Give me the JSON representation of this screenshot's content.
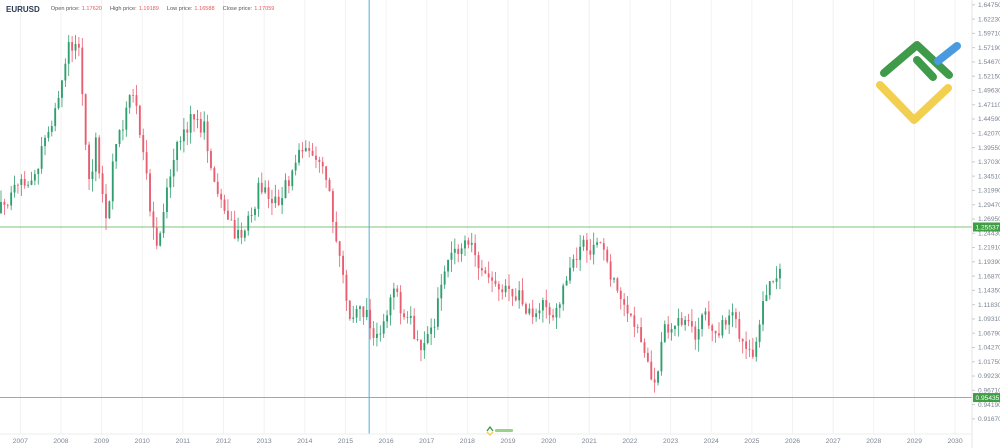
{
  "header": {
    "symbol": "EURUSD",
    "open_label": "Open price:",
    "open_value": "1.17620",
    "high_label": "High price:",
    "high_value": "1.19189",
    "low_label": "Low price:",
    "low_value": "1.16588",
    "close_label": "Close price:",
    "close_value": "1.17059"
  },
  "colors": {
    "up": "#2e9e6e",
    "down": "#e85d6f",
    "hline": "#7cc47a",
    "crosshair": "#4fb0d8",
    "label_bg": "#3f9f45",
    "logo_green": "#3f9a49",
    "logo_blue": "#4a9ae0",
    "logo_yellow": "#f3cf4f"
  },
  "icons": [
    "company-logo-icon",
    "watermark-logo-icon"
  ],
  "chart_data": {
    "type": "candlestick",
    "x_domain": [
      "2006-07",
      "2030-06"
    ],
    "ylim": [
      0.89,
      1.656
    ],
    "y_ticks": [
      "1.64750",
      "1.62230",
      "1.59710",
      "1.57190",
      "1.54670",
      "1.52150",
      "1.49630",
      "1.47110",
      "1.44590",
      "1.42070",
      "1.39550",
      "1.37030",
      "1.34510",
      "1.31990",
      "1.29470",
      "1.26950",
      "1.24430",
      "1.21910",
      "1.19390",
      "1.16870",
      "1.14350",
      "1.11830",
      "1.09310",
      "1.06790",
      "1.04270",
      "1.01750",
      "0.99230",
      "0.96710",
      "0.94190",
      "0.91670"
    ],
    "x_ticks": [
      "2007",
      "2008",
      "2009",
      "2010",
      "2011",
      "2012",
      "2013",
      "2014",
      "2015",
      "2016",
      "2017",
      "2018",
      "2019",
      "2020",
      "2021",
      "2022",
      "2023",
      "2024",
      "2025",
      "2026",
      "2027",
      "2028",
      "2029",
      "2030"
    ],
    "horizontal_lines": [
      {
        "value": 1.25537,
        "label": "1.25537"
      },
      {
        "value": 0.95435,
        "label": "0.95435"
      }
    ],
    "crosshair_x": "2015-08",
    "series_key_points": [
      {
        "x": "2006-07",
        "y": 1.28
      },
      {
        "x": "2006-12",
        "y": 1.32
      },
      {
        "x": "2007-06",
        "y": 1.35
      },
      {
        "x": "2007-12",
        "y": 1.46
      },
      {
        "x": "2008-04",
        "y": 1.57
      },
      {
        "x": "2008-07",
        "y": 1.58
      },
      {
        "x": "2008-10",
        "y": 1.33
      },
      {
        "x": "2008-12",
        "y": 1.4
      },
      {
        "x": "2009-03",
        "y": 1.27
      },
      {
        "x": "2009-06",
        "y": 1.4
      },
      {
        "x": "2009-11",
        "y": 1.5
      },
      {
        "x": "2010-01",
        "y": 1.42
      },
      {
        "x": "2010-06",
        "y": 1.21
      },
      {
        "x": "2010-11",
        "y": 1.38
      },
      {
        "x": "2011-04",
        "y": 1.45
      },
      {
        "x": "2011-08",
        "y": 1.43
      },
      {
        "x": "2011-12",
        "y": 1.3
      },
      {
        "x": "2012-07",
        "y": 1.23
      },
      {
        "x": "2012-12",
        "y": 1.32
      },
      {
        "x": "2013-06",
        "y": 1.3
      },
      {
        "x": "2013-12",
        "y": 1.38
      },
      {
        "x": "2014-05",
        "y": 1.38
      },
      {
        "x": "2014-08",
        "y": 1.34
      },
      {
        "x": "2014-12",
        "y": 1.21
      },
      {
        "x": "2015-03",
        "y": 1.08
      },
      {
        "x": "2015-06",
        "y": 1.12
      },
      {
        "x": "2015-11",
        "y": 1.06
      },
      {
        "x": "2016-04",
        "y": 1.14
      },
      {
        "x": "2016-12",
        "y": 1.05
      },
      {
        "x": "2017-04",
        "y": 1.09
      },
      {
        "x": "2017-08",
        "y": 1.19
      },
      {
        "x": "2018-01",
        "y": 1.24
      },
      {
        "x": "2018-03",
        "y": 1.23
      },
      {
        "x": "2018-06",
        "y": 1.17
      },
      {
        "x": "2018-12",
        "y": 1.14
      },
      {
        "x": "2019-06",
        "y": 1.13
      },
      {
        "x": "2019-09",
        "y": 1.09
      },
      {
        "x": "2019-12",
        "y": 1.12
      },
      {
        "x": "2020-03",
        "y": 1.1
      },
      {
        "x": "2020-08",
        "y": 1.18
      },
      {
        "x": "2020-12",
        "y": 1.22
      },
      {
        "x": "2021-05",
        "y": 1.22
      },
      {
        "x": "2021-09",
        "y": 1.16
      },
      {
        "x": "2021-12",
        "y": 1.13
      },
      {
        "x": "2022-05",
        "y": 1.06
      },
      {
        "x": "2022-09",
        "y": 0.98
      },
      {
        "x": "2022-12",
        "y": 1.07
      },
      {
        "x": "2023-06",
        "y": 1.09
      },
      {
        "x": "2023-09",
        "y": 1.06
      },
      {
        "x": "2023-12",
        "y": 1.1
      },
      {
        "x": "2024-04",
        "y": 1.07
      },
      {
        "x": "2024-08",
        "y": 1.1
      },
      {
        "x": "2024-12",
        "y": 1.04
      },
      {
        "x": "2025-02",
        "y": 1.04
      },
      {
        "x": "2025-06",
        "y": 1.15
      },
      {
        "x": "2025-09",
        "y": 1.17
      }
    ]
  }
}
